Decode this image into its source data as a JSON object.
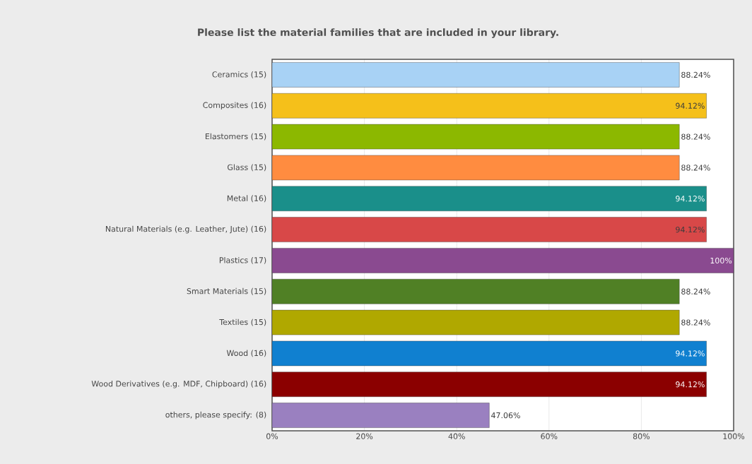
{
  "chart_data": {
    "type": "bar",
    "orientation": "horizontal",
    "title": "Please list the material families that are included in your library.",
    "categories": [
      "Ceramics (15)",
      "Composites (16)",
      "Elastomers (15)",
      "Glass (15)",
      "Metal (16)",
      "Natural Materials (e.g. Leather, Jute) (16)",
      "Plastics (17)",
      "Smart Materials  (15)",
      "Textiles (15)",
      "Wood (16)",
      "Wood Derivatives (e.g. MDF, Chipboard) (16)",
      "others, please specify: (8)"
    ],
    "values": [
      88.24,
      94.12,
      88.24,
      88.24,
      94.12,
      94.12,
      100,
      88.24,
      88.24,
      94.12,
      94.12,
      47.06
    ],
    "value_labels": [
      "88.24%",
      "94.12%",
      "88.24%",
      "88.24%",
      "94.12%",
      "94.12%",
      "100%",
      "88.24%",
      "88.24%",
      "94.12%",
      "94.12%",
      "47.06%"
    ],
    "colors": [
      "#a8d2f5",
      "#f5c01a",
      "#8cb800",
      "#ff8c40",
      "#1a8f8a",
      "#d84848",
      "#8a4a90",
      "#508025",
      "#b0a800",
      "#1080d0",
      "#8b0000",
      "#9a80c0"
    ],
    "xlim": [
      0,
      100
    ],
    "xticks": [
      {
        "value": 0,
        "label": "0%"
      },
      {
        "value": 20,
        "label": "20%"
      },
      {
        "value": 40,
        "label": "40%"
      },
      {
        "value": 60,
        "label": "60%"
      },
      {
        "value": 80,
        "label": "80%"
      },
      {
        "value": 100,
        "label": "100%"
      }
    ],
    "grid": "x"
  }
}
